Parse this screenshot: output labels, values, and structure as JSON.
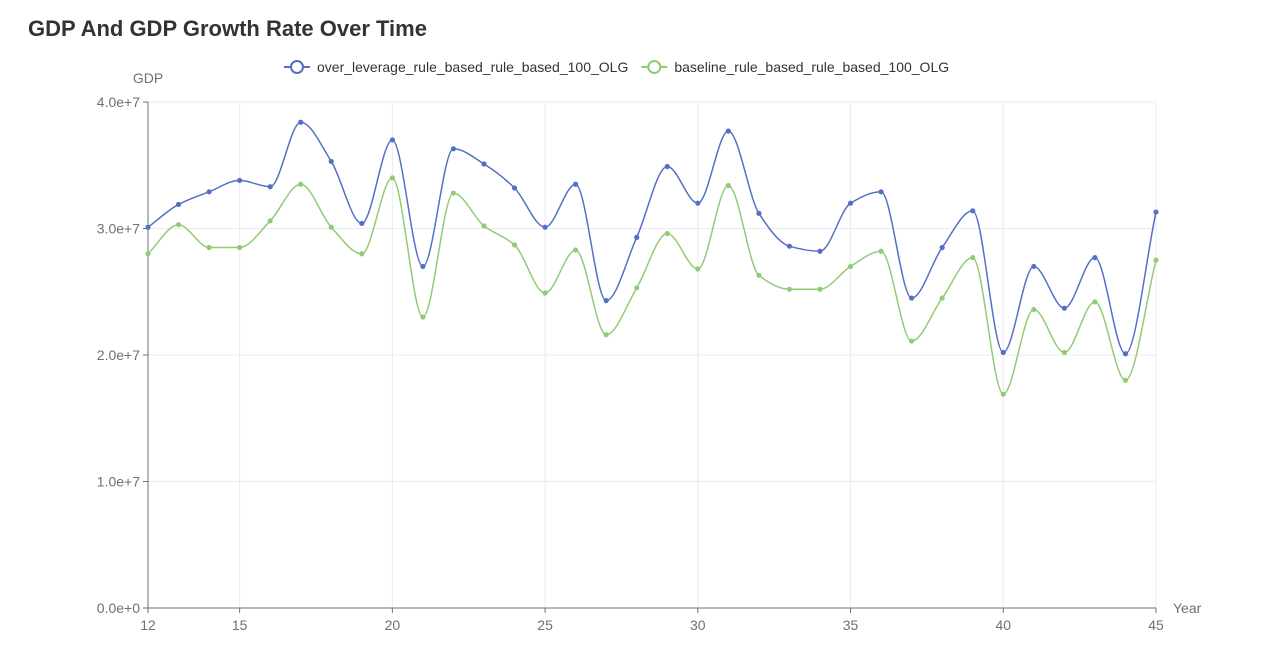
{
  "page": {
    "title": "GDP And GDP Growth Rate Over Time"
  },
  "chart_data": {
    "type": "line",
    "title": "GDP And GDP Growth Rate Over Time",
    "xlabel": "Year",
    "ylabel": "GDP",
    "xlim": [
      12,
      45
    ],
    "ylim": [
      0,
      40000000
    ],
    "x_ticks": [
      12,
      15,
      20,
      25,
      30,
      35,
      40,
      45
    ],
    "x_tick_labels": [
      "12",
      "15",
      "20",
      "25",
      "30",
      "35",
      "40",
      "45"
    ],
    "y_ticks": [
      0,
      10000000,
      20000000,
      30000000,
      40000000
    ],
    "y_tick_labels": [
      "0.0e+0",
      "1.0e+7",
      "2.0e+7",
      "3.0e+7",
      "4.0e+7"
    ],
    "grid": true,
    "legend_position": "top-center",
    "smooth": true,
    "x": [
      12,
      13,
      14,
      15,
      16,
      17,
      18,
      19,
      20,
      21,
      22,
      23,
      24,
      25,
      26,
      27,
      28,
      29,
      30,
      31,
      32,
      33,
      34,
      35,
      36,
      37,
      38,
      39,
      40,
      41,
      42,
      43,
      44,
      45
    ],
    "series": [
      {
        "name": "over_leverage_rule_based_rule_based_100_OLG",
        "color": "#5470c6",
        "values": [
          30100000,
          31900000,
          32900000,
          33800000,
          33300000,
          38400000,
          35300000,
          30400000,
          37000000,
          27000000,
          36300000,
          35100000,
          33200000,
          30100000,
          33500000,
          24300000,
          29300000,
          34900000,
          32000000,
          37700000,
          31200000,
          28600000,
          28200000,
          32000000,
          32900000,
          24500000,
          28500000,
          31400000,
          20200000,
          27000000,
          23700000,
          27700000,
          20100000,
          31300000
        ]
      },
      {
        "name": "baseline_rule_based_rule_based_100_OLG",
        "color": "#91cc75",
        "values": [
          28000000,
          30300000,
          28500000,
          28500000,
          30600000,
          33500000,
          30100000,
          28000000,
          34000000,
          23000000,
          32800000,
          30200000,
          28700000,
          24900000,
          28300000,
          21600000,
          25300000,
          29600000,
          26800000,
          33400000,
          26300000,
          25200000,
          25200000,
          27000000,
          28200000,
          21100000,
          24500000,
          27700000,
          16900000,
          23600000,
          20200000,
          24200000,
          18000000,
          27500000
        ]
      }
    ]
  }
}
